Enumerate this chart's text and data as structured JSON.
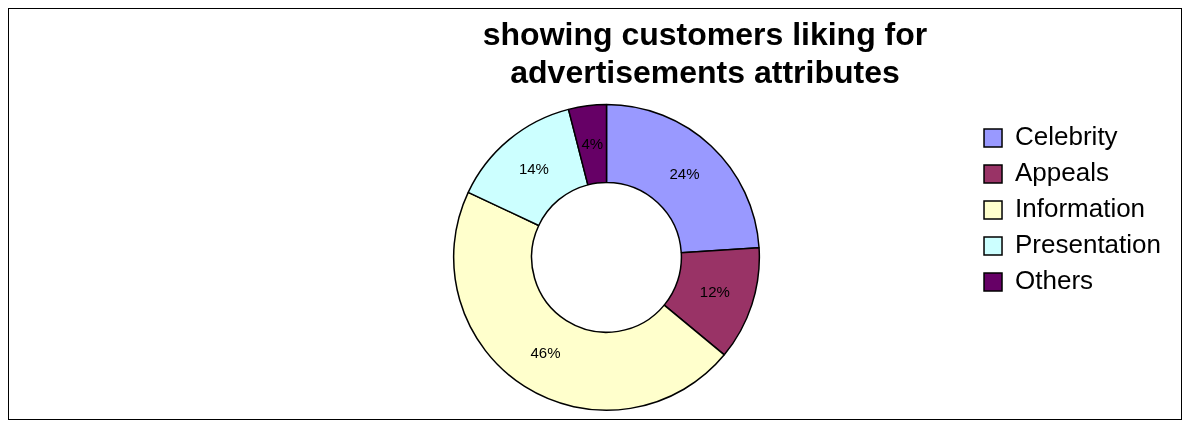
{
  "chart_data": {
    "type": "donut",
    "title": [
      "showing customers liking for",
      "advertisements attributes"
    ],
    "categories": [
      "Celebrity",
      "Appeals",
      "Information",
      "Presentation",
      "Others"
    ],
    "values": [
      24,
      12,
      46,
      14,
      4
    ],
    "colors": [
      "#9999ff",
      "#993366",
      "#ffffcc",
      "#ccffff",
      "#660066"
    ],
    "value_labels": [
      "24%",
      "12%",
      "46%",
      "14%",
      "4%"
    ],
    "legend": "right"
  }
}
